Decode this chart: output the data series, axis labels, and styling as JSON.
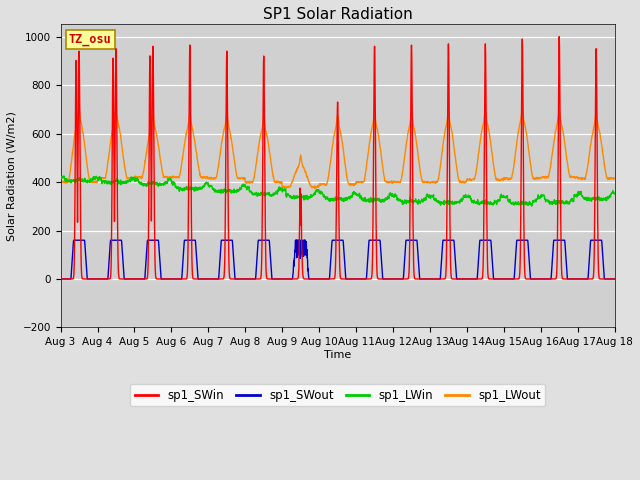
{
  "title": "SP1 Solar Radiation",
  "ylabel": "Solar Radiation (W/m2)",
  "xlabel": "Time",
  "ylim": [
    -200,
    1050
  ],
  "tz_label": "TZ_osu",
  "x_tick_labels": [
    "Aug 3",
    "Aug 4",
    "Aug 5",
    "Aug 6",
    "Aug 7",
    "Aug 8",
    "Aug 9",
    "Aug 10",
    "Aug 11",
    "Aug 12",
    "Aug 13",
    "Aug 14",
    "Aug 15",
    "Aug 16",
    "Aug 17",
    "Aug 18"
  ],
  "legend_labels": [
    "sp1_SWin",
    "sp1_SWout",
    "sp1_LWin",
    "sp1_LWout"
  ],
  "colors": {
    "SWin": "#ff0000",
    "SWout": "#0000cc",
    "LWin": "#00cc00",
    "LWout": "#ff8800"
  },
  "background_color": "#e0e0e0",
  "plot_bg_color": "#d0d0d0",
  "linewidth": 1.0,
  "title_fontsize": 11,
  "label_fontsize": 8,
  "tick_fontsize": 7.5
}
